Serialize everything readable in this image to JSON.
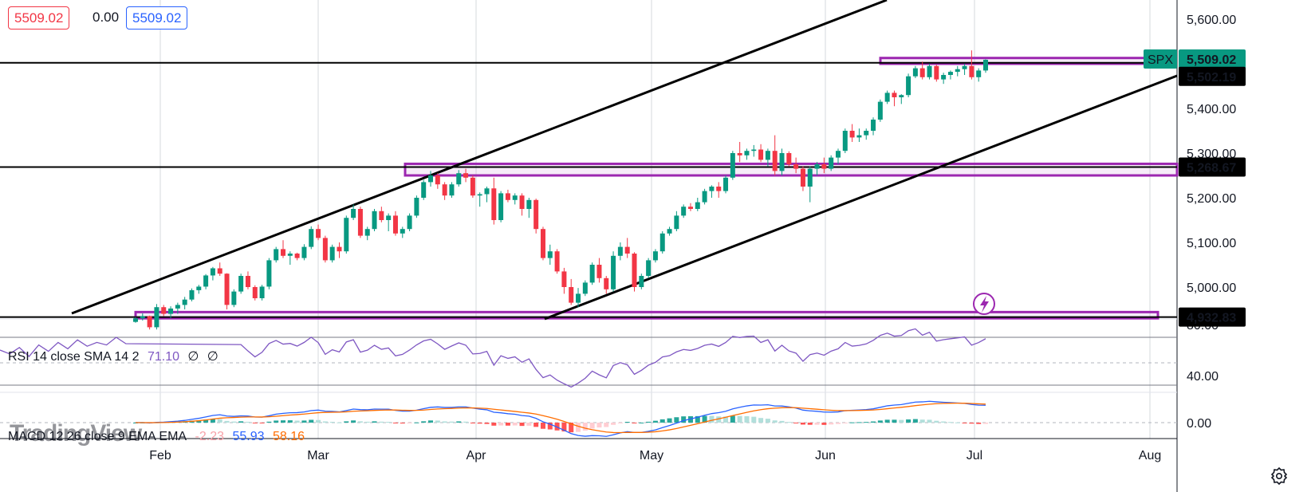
{
  "header": {
    "open_value": "5509.02",
    "change_value": "0.00",
    "close_value": "5509.02"
  },
  "chart_data": {
    "type": "candlestick",
    "symbol": "SPX",
    "x_labels": [
      "Feb",
      "Mar",
      "Apr",
      "May",
      "Jun",
      "Jul",
      "Aug"
    ],
    "y_ticks": [
      "5,600.00",
      "5,400.00",
      "5,300.00",
      "5,200.00",
      "5,100.00",
      "5,000.00"
    ],
    "ylim": [
      4910,
      5640
    ],
    "price_labels": [
      {
        "value": 5509.02,
        "text": "5,509.02",
        "tag": "SPX",
        "color": "#089981"
      },
      {
        "value": 5502.19,
        "text": "5,502.19",
        "color": "#000000"
      },
      {
        "value": 5268.67,
        "text": "5,268.67",
        "color": "#000000"
      },
      {
        "value": 4932.83,
        "text": "4,932.83",
        "color": "#000000"
      }
    ],
    "horizontal_lines": [
      5502.19,
      5268.67,
      4932.83
    ],
    "zones": [
      {
        "low": 5500,
        "high": 5513,
        "color": "#9c27b0"
      },
      {
        "low": 5250,
        "high": 5276,
        "color": "#9c27b0"
      },
      {
        "low": 4930,
        "high": 4944,
        "color": "#9c27b0"
      }
    ],
    "candles": [
      [
        4922,
        4933,
        4920,
        4930
      ],
      [
        4930,
        4941,
        4925,
        4935
      ],
      [
        4935,
        4936,
        4905,
        4910
      ],
      [
        4910,
        4962,
        4905,
        4955
      ],
      [
        4955,
        4960,
        4935,
        4940
      ],
      [
        4940,
        4957,
        4930,
        4952
      ],
      [
        4952,
        4965,
        4940,
        4960
      ],
      [
        4960,
        4978,
        4950,
        4972
      ],
      [
        4972,
        4997,
        4968,
        4993
      ],
      [
        4993,
        5005,
        4985,
        5001
      ],
      [
        5001,
        5029,
        4995,
        5026
      ],
      [
        5026,
        5045,
        5015,
        5042
      ],
      [
        5042,
        5055,
        5025,
        5030
      ],
      [
        5030,
        5031,
        4950,
        4960
      ],
      [
        4960,
        4995,
        4955,
        4990
      ],
      [
        4990,
        5030,
        4985,
        5025
      ],
      [
        5025,
        5035,
        4995,
        5000
      ],
      [
        5000,
        5004,
        4970,
        4975
      ],
      [
        4975,
        5005,
        4970,
        5001
      ],
      [
        5001,
        5065,
        4995,
        5060
      ],
      [
        5060,
        5090,
        5055,
        5085
      ],
      [
        5085,
        5105,
        5065,
        5070
      ],
      [
        5070,
        5080,
        5050,
        5075
      ],
      [
        5075,
        5077,
        5060,
        5065
      ],
      [
        5065,
        5096,
        5060,
        5090
      ],
      [
        5090,
        5136,
        5085,
        5130
      ],
      [
        5130,
        5140,
        5105,
        5110
      ],
      [
        5110,
        5115,
        5055,
        5060
      ],
      [
        5060,
        5095,
        5055,
        5090
      ],
      [
        5090,
        5100,
        5065,
        5080
      ],
      [
        5080,
        5160,
        5075,
        5155
      ],
      [
        5155,
        5185,
        5150,
        5175
      ],
      [
        5175,
        5180,
        5110,
        5115
      ],
      [
        5115,
        5135,
        5105,
        5130
      ],
      [
        5130,
        5175,
        5125,
        5170
      ],
      [
        5170,
        5180,
        5145,
        5150
      ],
      [
        5150,
        5165,
        5125,
        5160
      ],
      [
        5160,
        5170,
        5115,
        5120
      ],
      [
        5120,
        5135,
        5110,
        5130
      ],
      [
        5130,
        5165,
        5125,
        5160
      ],
      [
        5160,
        5205,
        5155,
        5200
      ],
      [
        5200,
        5240,
        5195,
        5235
      ],
      [
        5235,
        5260,
        5225,
        5250
      ],
      [
        5250,
        5255,
        5220,
        5230
      ],
      [
        5230,
        5235,
        5195,
        5205
      ],
      [
        5205,
        5235,
        5200,
        5230
      ],
      [
        5230,
        5262,
        5225,
        5255
      ],
      [
        5255,
        5265,
        5235,
        5245
      ],
      [
        5245,
        5250,
        5200,
        5205
      ],
      [
        5205,
        5212,
        5180,
        5208
      ],
      [
        5208,
        5225,
        5190,
        5221
      ],
      [
        5221,
        5245,
        5140,
        5150
      ],
      [
        5150,
        5215,
        5145,
        5210
      ],
      [
        5210,
        5218,
        5190,
        5195
      ],
      [
        5195,
        5210,
        5185,
        5205
      ],
      [
        5205,
        5210,
        5160,
        5175
      ],
      [
        5175,
        5200,
        5155,
        5195
      ],
      [
        5195,
        5198,
        5120,
        5130
      ],
      [
        5130,
        5135,
        5060,
        5065
      ],
      [
        5065,
        5095,
        5050,
        5080
      ],
      [
        5080,
        5085,
        5030,
        5035
      ],
      [
        5035,
        5043,
        4985,
        5000
      ],
      [
        5000,
        5018,
        4960,
        4965
      ],
      [
        4965,
        4998,
        4955,
        4985
      ],
      [
        4985,
        5015,
        4980,
        5010
      ],
      [
        5010,
        5055,
        5005,
        5050
      ],
      [
        5050,
        5065,
        5010,
        5020
      ],
      [
        5020,
        5025,
        4985,
        4995
      ],
      [
        4995,
        5080,
        4990,
        5070
      ],
      [
        5070,
        5100,
        5060,
        5090
      ],
      [
        5090,
        5110,
        5065,
        5075
      ],
      [
        5075,
        5078,
        4990,
        5000
      ],
      [
        5000,
        5030,
        4995,
        5025
      ],
      [
        5025,
        5065,
        5020,
        5060
      ],
      [
        5060,
        5085,
        5055,
        5080
      ],
      [
        5080,
        5125,
        5075,
        5120
      ],
      [
        5120,
        5135,
        5115,
        5130
      ],
      [
        5130,
        5170,
        5125,
        5160
      ],
      [
        5160,
        5185,
        5155,
        5180
      ],
      [
        5180,
        5188,
        5170,
        5175
      ],
      [
        5175,
        5200,
        5170,
        5190
      ],
      [
        5190,
        5220,
        5185,
        5215
      ],
      [
        5215,
        5228,
        5200,
        5225
      ],
      [
        5225,
        5235,
        5200,
        5215
      ],
      [
        5215,
        5250,
        5210,
        5245
      ],
      [
        5245,
        5305,
        5240,
        5300
      ],
      [
        5300,
        5325,
        5280,
        5295
      ],
      [
        5295,
        5310,
        5285,
        5305
      ],
      [
        5305,
        5318,
        5292,
        5308
      ],
      [
        5308,
        5320,
        5280,
        5285
      ],
      [
        5285,
        5310,
        5270,
        5305
      ],
      [
        5305,
        5340,
        5250,
        5260
      ],
      [
        5260,
        5310,
        5250,
        5300
      ],
      [
        5300,
        5304,
        5270,
        5275
      ],
      [
        5275,
        5290,
        5255,
        5265
      ],
      [
        5265,
        5270,
        5215,
        5225
      ],
      [
        5225,
        5270,
        5190,
        5265
      ],
      [
        5265,
        5280,
        5250,
        5275
      ],
      [
        5275,
        5290,
        5255,
        5265
      ],
      [
        5265,
        5295,
        5260,
        5290
      ],
      [
        5290,
        5310,
        5275,
        5305
      ],
      [
        5305,
        5355,
        5300,
        5350
      ],
      [
        5350,
        5365,
        5325,
        5335
      ],
      [
        5335,
        5355,
        5325,
        5340
      ],
      [
        5340,
        5355,
        5330,
        5350
      ],
      [
        5350,
        5380,
        5340,
        5375
      ],
      [
        5375,
        5420,
        5370,
        5415
      ],
      [
        5415,
        5440,
        5410,
        5435
      ],
      [
        5435,
        5440,
        5405,
        5425
      ],
      [
        5425,
        5432,
        5410,
        5430
      ],
      [
        5430,
        5478,
        5425,
        5472
      ],
      [
        5472,
        5495,
        5468,
        5490
      ],
      [
        5490,
        5505,
        5465,
        5470
      ],
      [
        5470,
        5500,
        5465,
        5495
      ],
      [
        5495,
        5498,
        5460,
        5465
      ],
      [
        5465,
        5480,
        5455,
        5475
      ],
      [
        5475,
        5485,
        5465,
        5482
      ],
      [
        5482,
        5495,
        5472,
        5488
      ],
      [
        5488,
        5500,
        5475,
        5495
      ],
      [
        5495,
        5530,
        5465,
        5470
      ],
      [
        5470,
        5490,
        5460,
        5485
      ],
      [
        5485,
        5510,
        5480,
        5509.02
      ]
    ],
    "rsi": {
      "label": "RSI 14 close SMA 14 2",
      "value_text": "71.10",
      "extra_1": "∅",
      "extra_2": "∅",
      "color": "#7e57c2",
      "y_ticks": [
        "80.00",
        "40.00"
      ],
      "ylim": [
        25,
        85
      ],
      "bands": [
        70,
        30
      ],
      "mid": 50
    },
    "macd": {
      "label": "MACD 12 26 close 9 EMA EMA",
      "hist_text": "-2.23",
      "macd_text": "55.93",
      "signal_text": "58.16",
      "macd_color": "#2962ff",
      "signal_color": "#ff6d00",
      "y_ticks": [
        "0.00"
      ],
      "ylim": [
        -20,
        75
      ]
    }
  },
  "watermark": "TradingView"
}
